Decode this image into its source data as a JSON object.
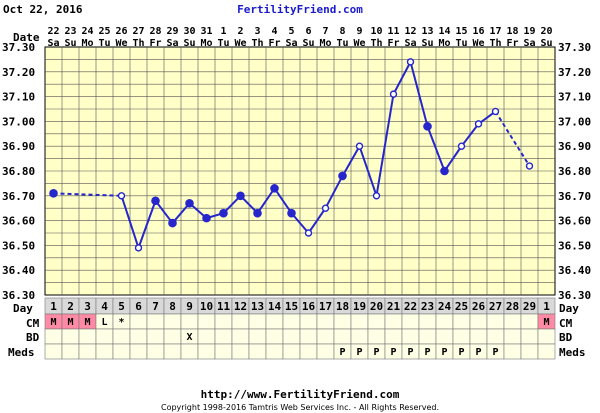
{
  "header": {
    "date": "Oct 22, 2016",
    "site": "FertilityFriend.com"
  },
  "footer": {
    "url": "http://www.FertilityFriend.com",
    "copyright": "Copyright 1998-2016 Tamtris Web Services Inc. - All Rights Reserved."
  },
  "colors": {
    "plot_bg": "#ffffc8",
    "grid": "#555555",
    "line": "#2626cc",
    "table_bg": "#ffffe6",
    "day_bg": "#d9d9d9",
    "menses": "#ff8aa6"
  },
  "row_labels": {
    "date": "Date",
    "day": "Day",
    "cm": "CM",
    "bd": "BD",
    "meds": "Meds"
  },
  "chart_data": {
    "type": "line",
    "title": "",
    "xlabel": "",
    "ylabel": "",
    "ylim": [
      36.3,
      37.3
    ],
    "y_ticks": [
      "36.30",
      "36.40",
      "36.50",
      "36.60",
      "36.70",
      "36.80",
      "36.90",
      "37.00",
      "37.10",
      "37.20",
      "37.30"
    ],
    "dates": [
      "22",
      "23",
      "24",
      "25",
      "26",
      "27",
      "28",
      "29",
      "30",
      "31",
      "1",
      "2",
      "3",
      "4",
      "5",
      "6",
      "7",
      "8",
      "9",
      "10",
      "11",
      "12",
      "13",
      "14",
      "15",
      "16",
      "17",
      "18",
      "19",
      "20"
    ],
    "weekdays": [
      "Sa",
      "Su",
      "Mo",
      "Tu",
      "We",
      "Th",
      "Fr",
      "Sa",
      "Su",
      "Mo",
      "Tu",
      "We",
      "Th",
      "Fr",
      "Sa",
      "Su",
      "Mo",
      "Tu",
      "We",
      "Th",
      "Fr",
      "Sa",
      "Su",
      "Mo",
      "Tu",
      "We",
      "Th",
      "Fr",
      "Sa",
      "Su"
    ],
    "cycle_days": [
      "1",
      "2",
      "3",
      "4",
      "5",
      "6",
      "7",
      "8",
      "9",
      "10",
      "11",
      "12",
      "13",
      "14",
      "15",
      "16",
      "17",
      "18",
      "19",
      "20",
      "21",
      "22",
      "23",
      "24",
      "25",
      "26",
      "27",
      "28",
      "29",
      "1"
    ],
    "temps": [
      36.71,
      null,
      null,
      null,
      36.7,
      36.49,
      36.68,
      36.59,
      36.67,
      36.61,
      36.63,
      36.7,
      36.63,
      36.73,
      36.63,
      36.55,
      36.65,
      36.78,
      36.9,
      36.7,
      37.11,
      37.24,
      36.98,
      36.8,
      36.9,
      36.99,
      37.04,
      null,
      36.82,
      null
    ],
    "open_points": [
      4,
      5,
      15,
      16,
      18,
      19,
      20,
      21,
      24,
      25,
      26,
      28
    ],
    "dashed_segments": [
      [
        0,
        4
      ],
      [
        26,
        28
      ]
    ],
    "cm": [
      "M",
      "M",
      "M",
      "L",
      "*",
      "",
      "",
      "",
      "",
      "",
      "",
      "",
      "",
      "",
      "",
      "",
      "",
      "",
      "",
      "",
      "",
      "",
      "",
      "",
      "",
      "",
      "",
      "",
      "",
      "M"
    ],
    "bd": [
      "",
      "",
      "",
      "",
      "",
      "",
      "",
      "",
      "X",
      "",
      "",
      "",
      "",
      "",
      "",
      "",
      "",
      "",
      "",
      "",
      "",
      "",
      "",
      "",
      "",
      "",
      "",
      "",
      "",
      ""
    ],
    "meds": [
      "",
      "",
      "",
      "",
      "",
      "",
      "",
      "",
      "",
      "",
      "",
      "",
      "",
      "",
      "",
      "",
      "",
      "P",
      "P",
      "P",
      "P",
      "P",
      "P",
      "P",
      "P",
      "P",
      "P",
      "",
      "",
      ""
    ]
  }
}
